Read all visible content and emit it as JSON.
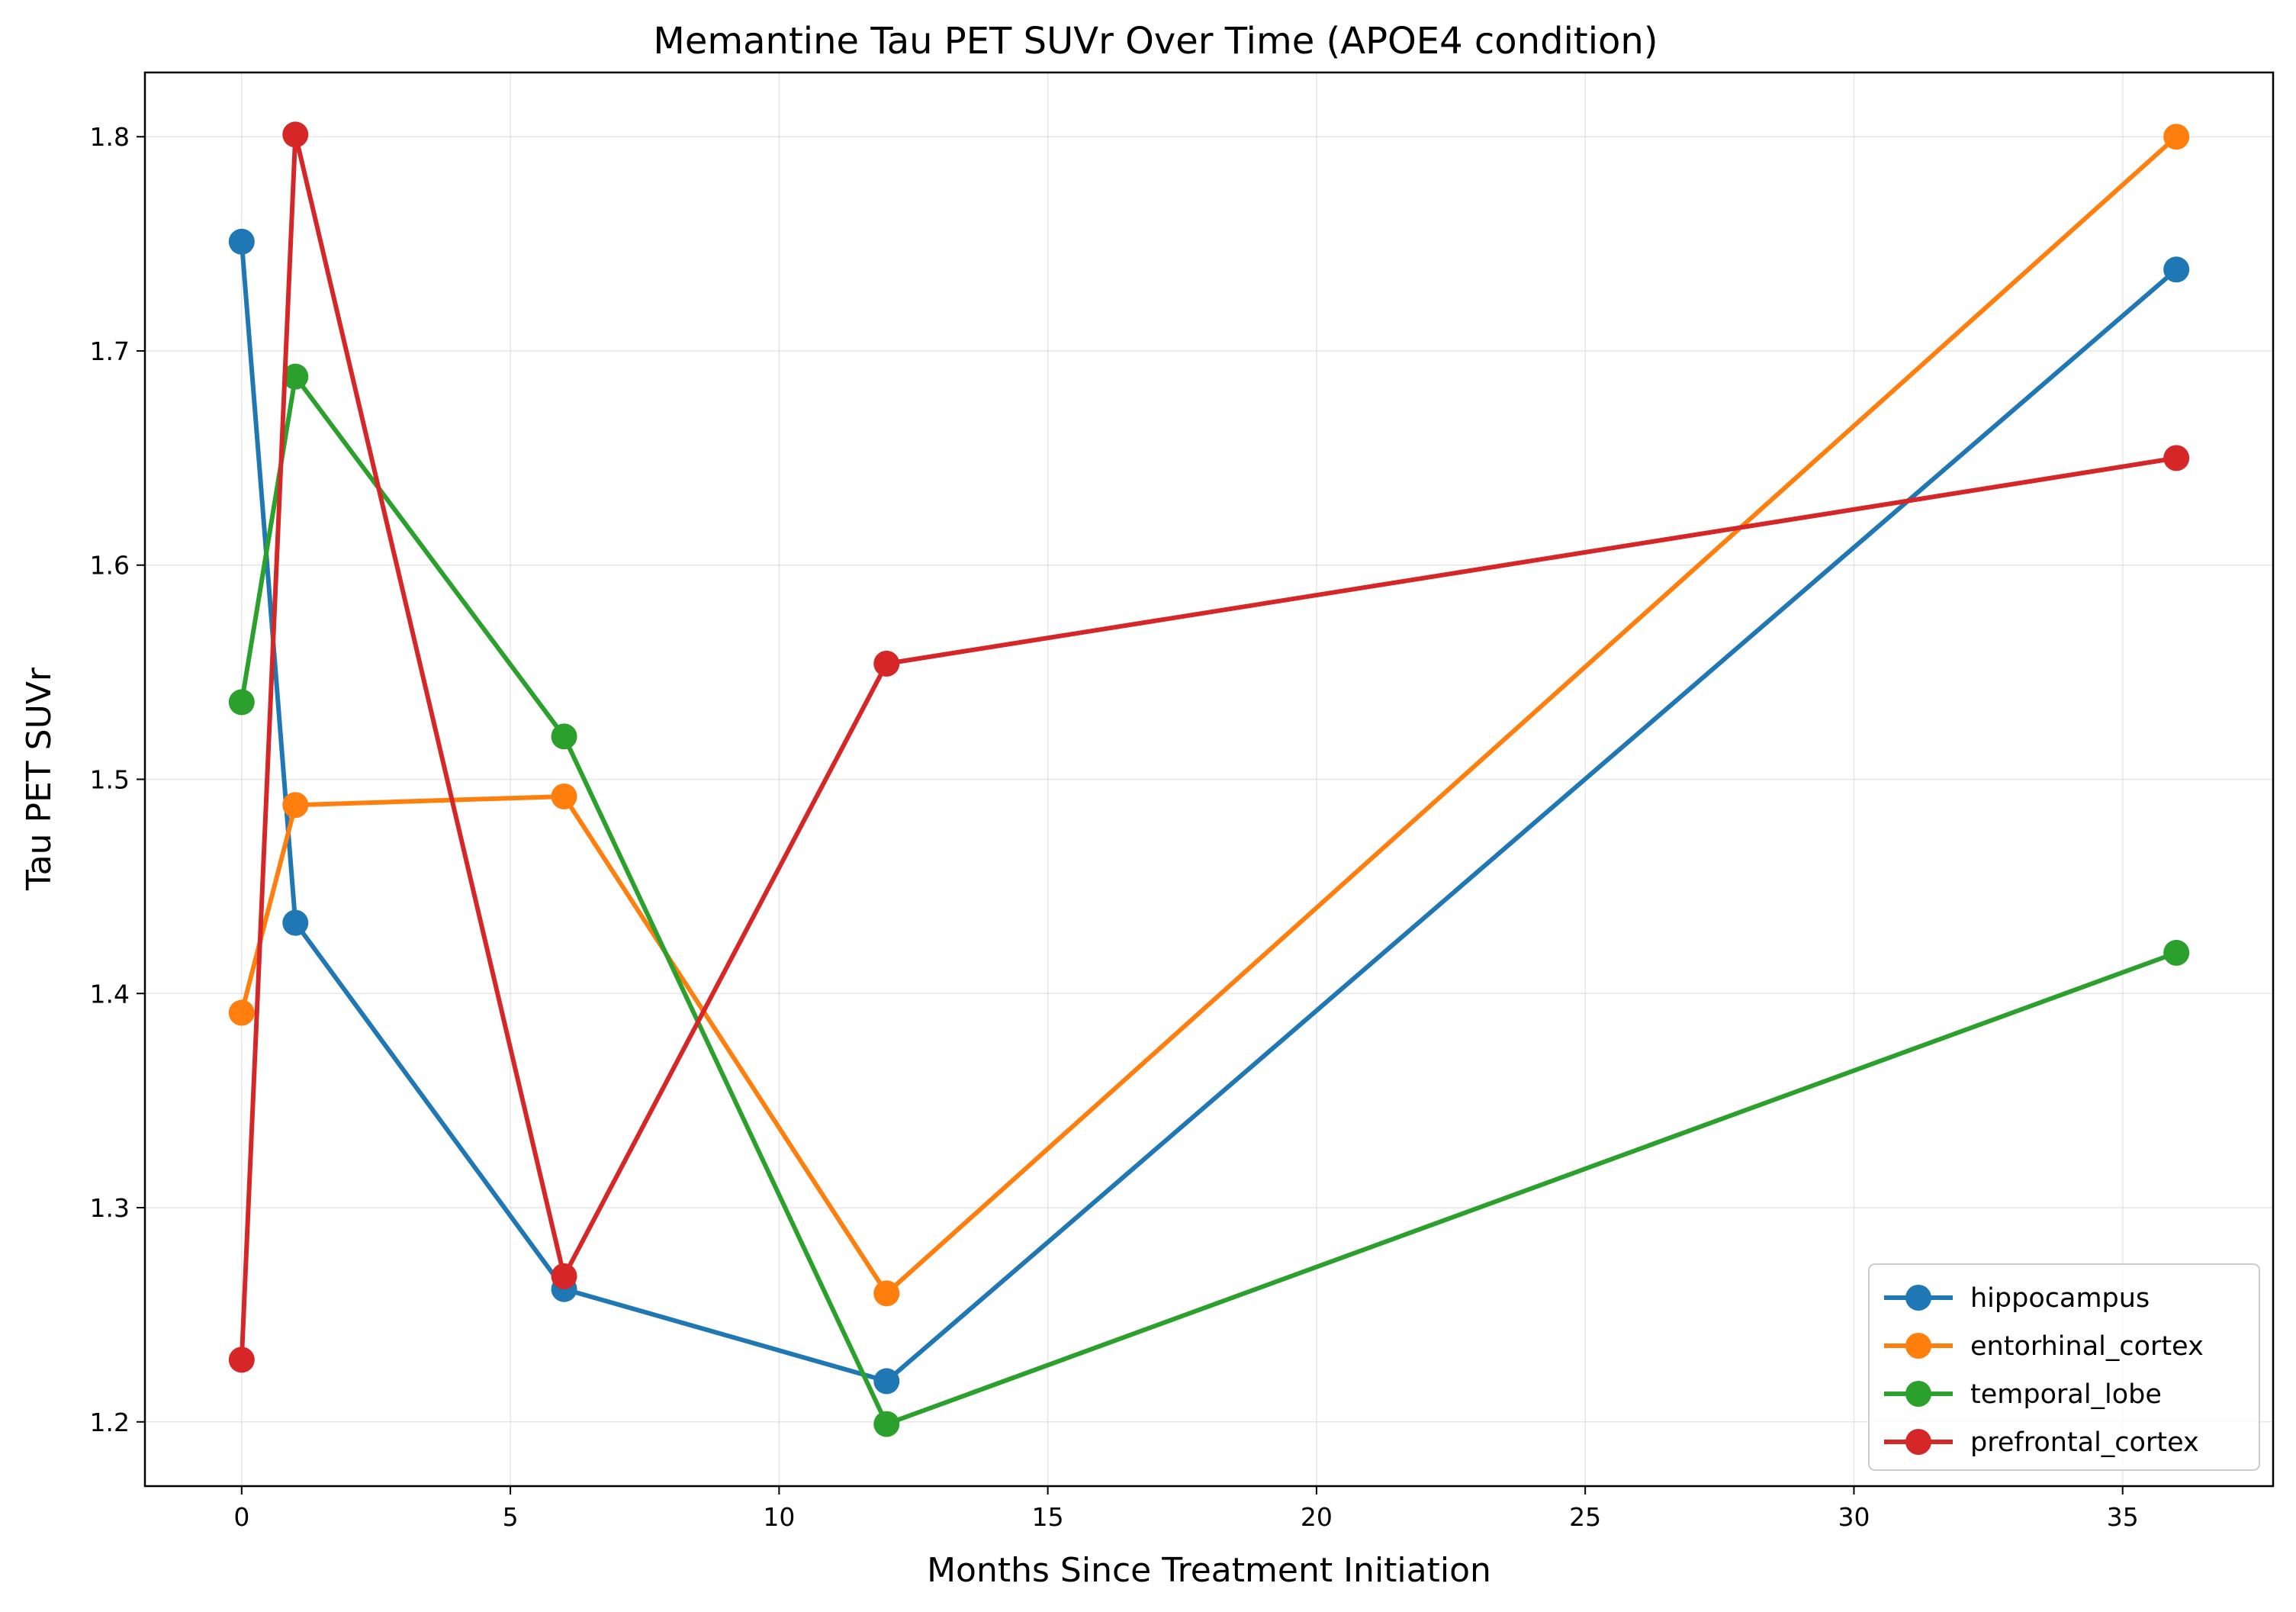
{
  "chart_data": {
    "type": "line",
    "title": "Memantine Tau PET SUVr Over Time (APOE4 condition)",
    "xlabel": "Months Since Treatment Initiation",
    "ylabel": "Tau PET SUVr",
    "xlim": [
      -1.8,
      37.8
    ],
    "ylim": [
      1.17,
      1.83
    ],
    "xticks": [
      0,
      5,
      10,
      15,
      20,
      25,
      30,
      35
    ],
    "yticks": [
      1.2,
      1.3,
      1.4,
      1.5,
      1.6,
      1.7,
      1.8
    ],
    "ytick_labels": [
      "1.2",
      "1.3",
      "1.4",
      "1.5",
      "1.6",
      "1.7",
      "1.8"
    ],
    "grid": true,
    "legend_position": "lower right",
    "x": [
      0,
      1,
      6,
      12,
      36
    ],
    "series": [
      {
        "name": "hippocampus",
        "color": "#1f77b4",
        "values": [
          1.751,
          1.433,
          1.262,
          1.219,
          1.738
        ]
      },
      {
        "name": "entorhinal_cortex",
        "color": "#ff7f0e",
        "values": [
          1.391,
          1.488,
          1.492,
          1.26,
          1.8
        ]
      },
      {
        "name": "temporal_lobe",
        "color": "#2ca02c",
        "values": [
          1.536,
          1.688,
          1.52,
          1.199,
          1.419
        ]
      },
      {
        "name": "prefrontal_cortex",
        "color": "#d62728",
        "values": [
          1.229,
          1.801,
          1.268,
          1.554,
          1.65
        ]
      }
    ]
  }
}
